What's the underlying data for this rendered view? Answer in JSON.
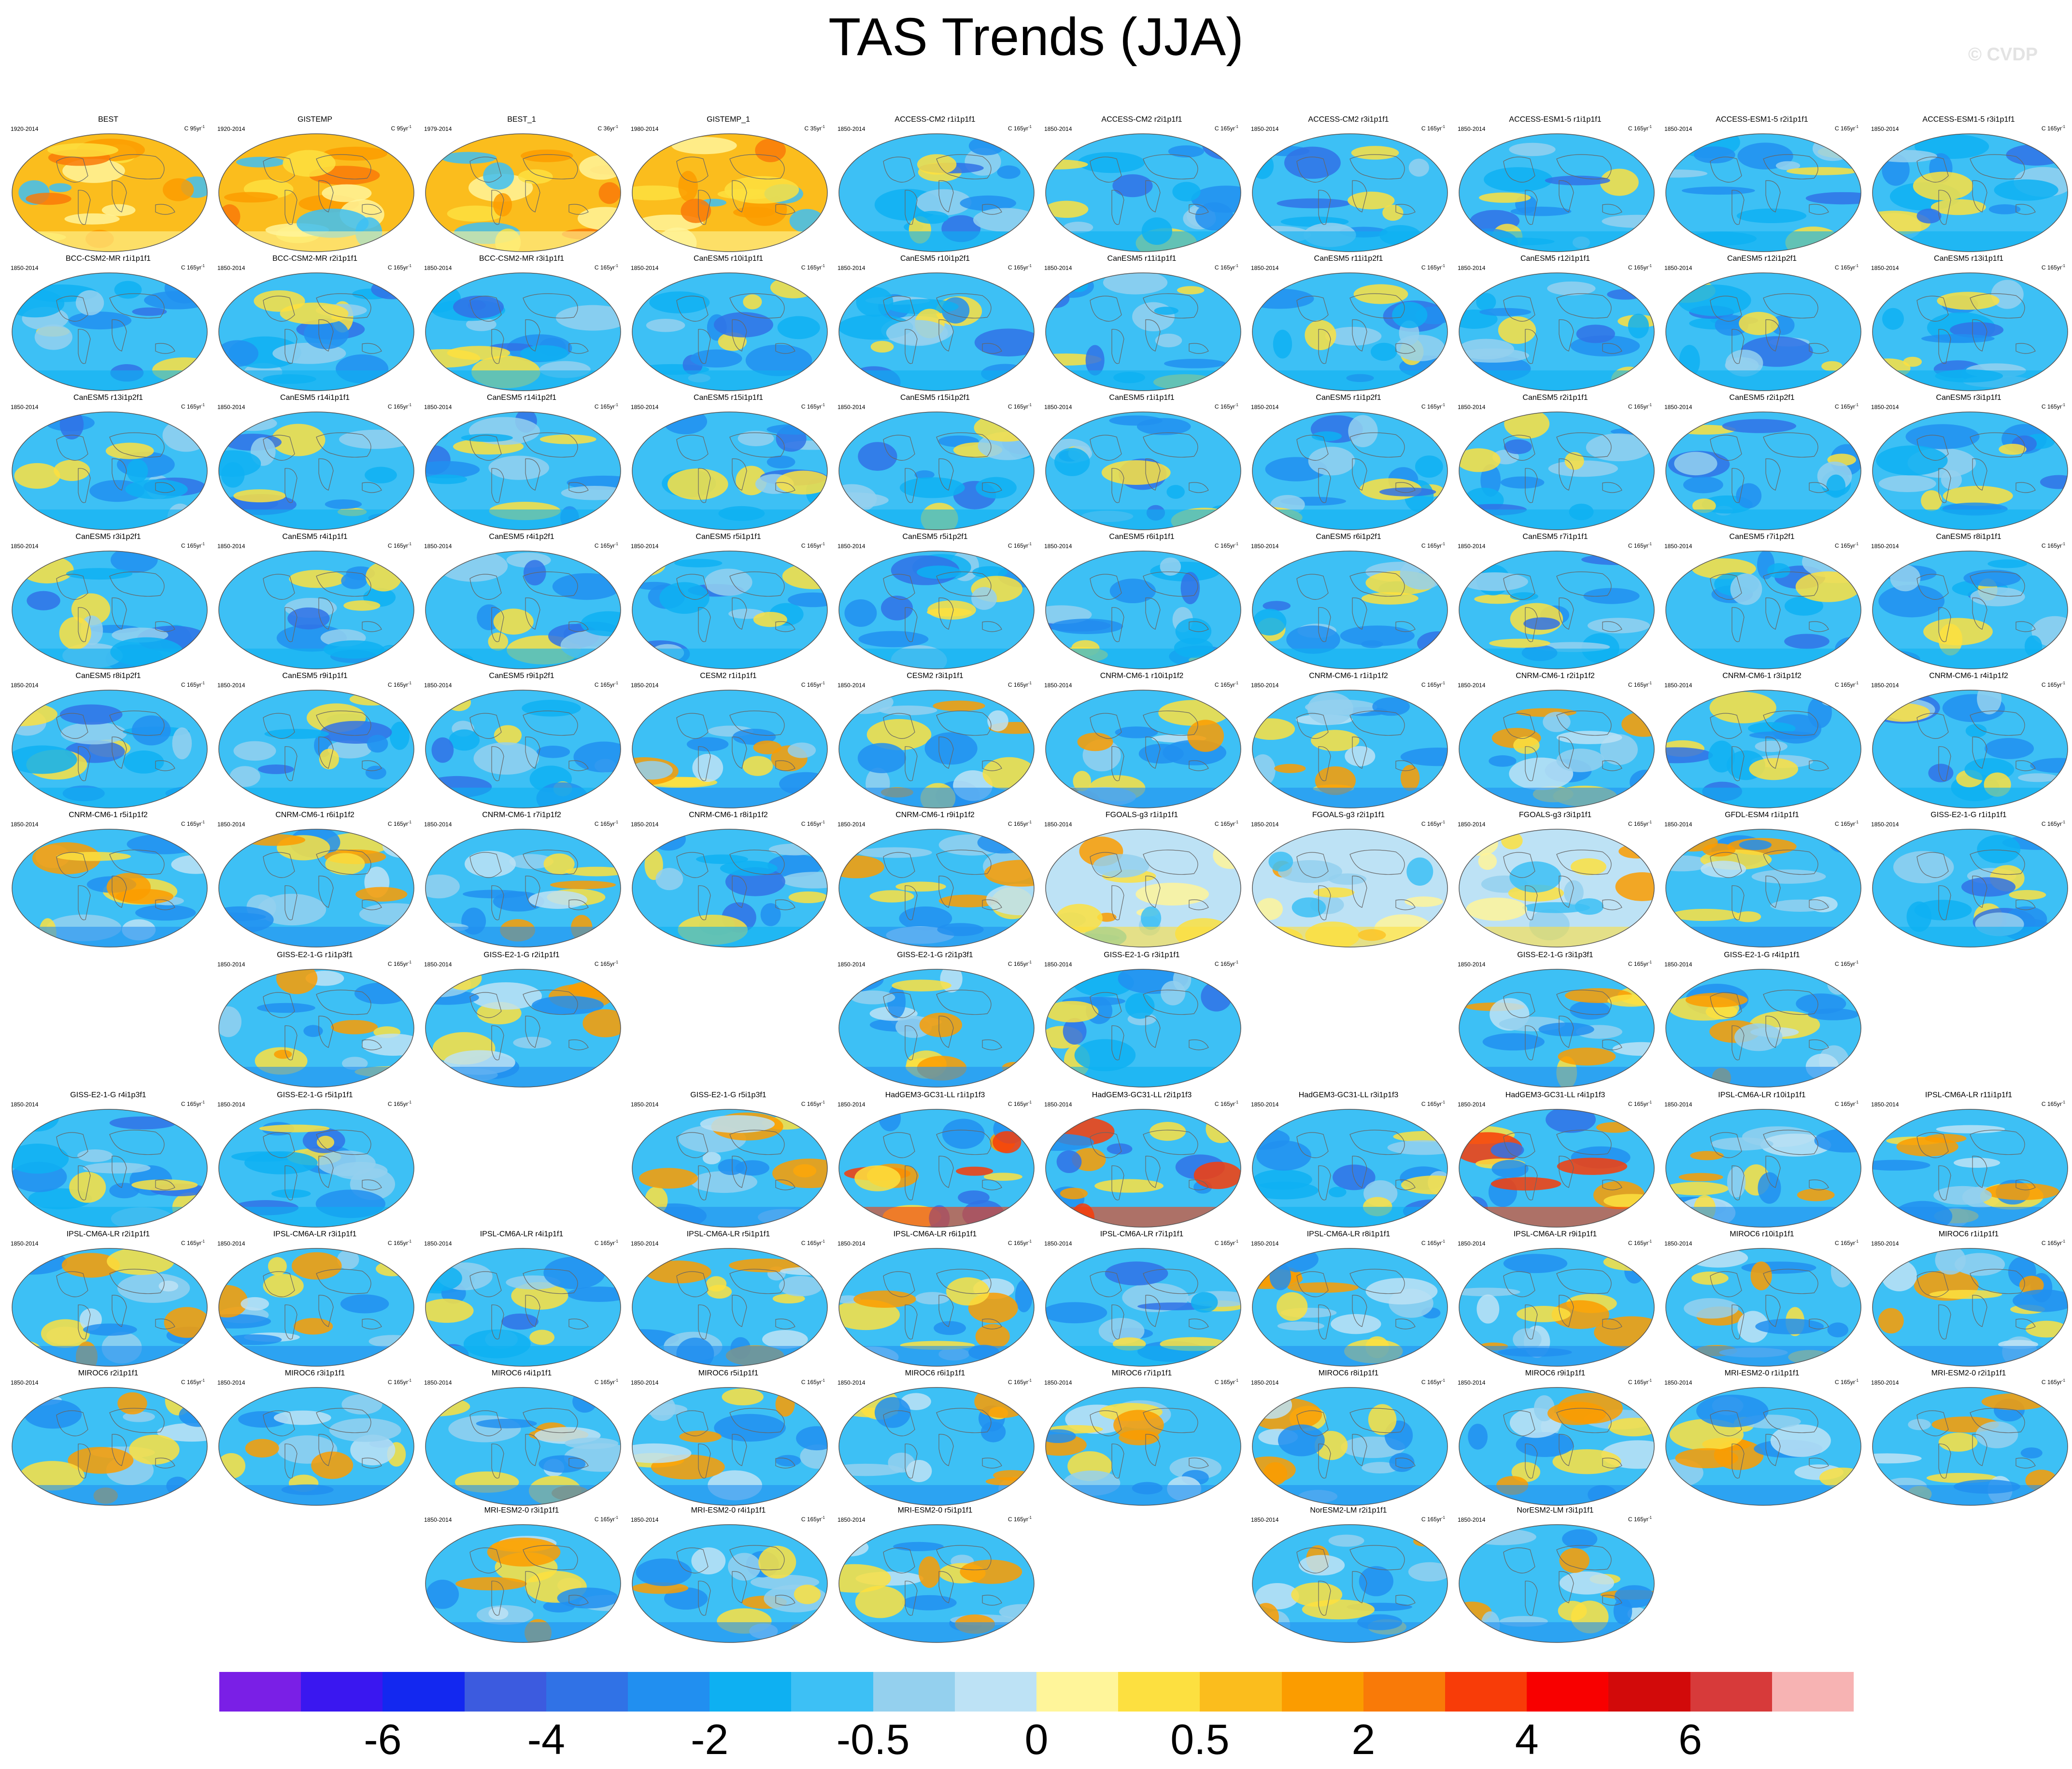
{
  "title": "TAS Trends (JJA)",
  "watermark": "© CVDP",
  "units_base": "C 165yr",
  "units_exp": "-1",
  "colorbar": {
    "colors": [
      "#7a1fe6",
      "#3a17f0",
      "#1328f0",
      "#3c5bdf",
      "#3072e6",
      "#218ff0",
      "#0eb0f2",
      "#3dc0f5",
      "#94d0ee",
      "#bde2f5",
      "#fff59a",
      "#fde040",
      "#fbbd1d",
      "#fb9c00",
      "#f97a08",
      "#f83c08",
      "#f80000",
      "#d20a0a",
      "#d73a3a",
      "#f7b3b3"
    ],
    "tick_labels": [
      "-6",
      "-4",
      "-2",
      "-0.5",
      "0",
      "0.5",
      "2",
      "4",
      "6"
    ]
  },
  "panels": [
    {
      "title": "BEST",
      "period": "1920-2014",
      "units": "C 95yr",
      "theme": "warm"
    },
    {
      "title": "GISTEMP",
      "period": "1920-2014",
      "units": "C 95yr",
      "theme": "warm"
    },
    {
      "title": "BEST_1",
      "period": "1979-2014",
      "units": "C 36yr",
      "theme": "warm"
    },
    {
      "title": "GISTEMP_1",
      "period": "1980-2014",
      "units": "C 35yr",
      "theme": "warm"
    },
    {
      "title": "ACCESS-CM2 r1i1p1f1",
      "period": "1850-2014",
      "units": "C 165yr",
      "theme": "cool"
    },
    {
      "title": "ACCESS-CM2 r2i1p1f1",
      "period": "1850-2014",
      "units": "C 165yr",
      "theme": "cool"
    },
    {
      "title": "ACCESS-CM2 r3i1p1f1",
      "period": "1850-2014",
      "units": "C 165yr",
      "theme": "cool"
    },
    {
      "title": "ACCESS-ESM1-5 r1i1p1f1",
      "period": "1850-2014",
      "units": "C 165yr",
      "theme": "cool"
    },
    {
      "title": "ACCESS-ESM1-5 r2i1p1f1",
      "period": "1850-2014",
      "units": "C 165yr",
      "theme": "cool"
    },
    {
      "title": "ACCESS-ESM1-5 r3i1p1f1",
      "period": "1850-2014",
      "units": "C 165yr",
      "theme": "cool"
    },
    {
      "title": "BCC-CSM2-MR r1i1p1f1",
      "period": "1850-2014",
      "units": "C 165yr",
      "theme": "cool"
    },
    {
      "title": "BCC-CSM2-MR r2i1p1f1",
      "period": "1850-2014",
      "units": "C 165yr",
      "theme": "cool"
    },
    {
      "title": "BCC-CSM2-MR r3i1p1f1",
      "period": "1850-2014",
      "units": "C 165yr",
      "theme": "cool"
    },
    {
      "title": "CanESM5 r10i1p1f1",
      "period": "1850-2014",
      "units": "C 165yr",
      "theme": "cool"
    },
    {
      "title": "CanESM5 r10i1p2f1",
      "period": "1850-2014",
      "units": "C 165yr",
      "theme": "cool"
    },
    {
      "title": "CanESM5 r11i1p1f1",
      "period": "1850-2014",
      "units": "C 165yr",
      "theme": "cool"
    },
    {
      "title": "CanESM5 r11i1p2f1",
      "period": "1850-2014",
      "units": "C 165yr",
      "theme": "cool"
    },
    {
      "title": "CanESM5 r12i1p1f1",
      "period": "1850-2014",
      "units": "C 165yr",
      "theme": "cool"
    },
    {
      "title": "CanESM5 r12i1p2f1",
      "period": "1850-2014",
      "units": "C 165yr",
      "theme": "cool"
    },
    {
      "title": "CanESM5 r13i1p1f1",
      "period": "1850-2014",
      "units": "C 165yr",
      "theme": "cool"
    },
    {
      "title": "CanESM5 r13i1p2f1",
      "period": "1850-2014",
      "units": "C 165yr",
      "theme": "cool"
    },
    {
      "title": "CanESM5 r14i1p1f1",
      "period": "1850-2014",
      "units": "C 165yr",
      "theme": "cool"
    },
    {
      "title": "CanESM5 r14i1p2f1",
      "period": "1850-2014",
      "units": "C 165yr",
      "theme": "cool"
    },
    {
      "title": "CanESM5 r15i1p1f1",
      "period": "1850-2014",
      "units": "C 165yr",
      "theme": "cool"
    },
    {
      "title": "CanESM5 r15i1p2f1",
      "period": "1850-2014",
      "units": "C 165yr",
      "theme": "cool"
    },
    {
      "title": "CanESM5 r1i1p1f1",
      "period": "1850-2014",
      "units": "C 165yr",
      "theme": "cool"
    },
    {
      "title": "CanESM5 r1i1p2f1",
      "period": "1850-2014",
      "units": "C 165yr",
      "theme": "cool"
    },
    {
      "title": "CanESM5 r2i1p1f1",
      "period": "1850-2014",
      "units": "C 165yr",
      "theme": "cool"
    },
    {
      "title": "CanESM5 r2i1p2f1",
      "period": "1850-2014",
      "units": "C 165yr",
      "theme": "cool"
    },
    {
      "title": "CanESM5 r3i1p1f1",
      "period": "1850-2014",
      "units": "C 165yr",
      "theme": "cool"
    },
    {
      "title": "CanESM5 r3i1p2f1",
      "period": "1850-2014",
      "units": "C 165yr",
      "theme": "cool"
    },
    {
      "title": "CanESM5 r4i1p1f1",
      "period": "1850-2014",
      "units": "C 165yr",
      "theme": "cool"
    },
    {
      "title": "CanESM5 r4i1p2f1",
      "period": "1850-2014",
      "units": "C 165yr",
      "theme": "cool"
    },
    {
      "title": "CanESM5 r5i1p1f1",
      "period": "1850-2014",
      "units": "C 165yr",
      "theme": "cool"
    },
    {
      "title": "CanESM5 r5i1p2f1",
      "period": "1850-2014",
      "units": "C 165yr",
      "theme": "cool"
    },
    {
      "title": "CanESM5 r6i1p1f1",
      "period": "1850-2014",
      "units": "C 165yr",
      "theme": "cool"
    },
    {
      "title": "CanESM5 r6i1p2f1",
      "period": "1850-2014",
      "units": "C 165yr",
      "theme": "cool"
    },
    {
      "title": "CanESM5 r7i1p1f1",
      "period": "1850-2014",
      "units": "C 165yr",
      "theme": "cool"
    },
    {
      "title": "CanESM5 r7i1p2f1",
      "period": "1850-2014",
      "units": "C 165yr",
      "theme": "cool"
    },
    {
      "title": "CanESM5 r8i1p1f1",
      "period": "1850-2014",
      "units": "C 165yr",
      "theme": "cool"
    },
    {
      "title": "CanESM5 r8i1p2f1",
      "period": "1850-2014",
      "units": "C 165yr",
      "theme": "cool"
    },
    {
      "title": "CanESM5 r9i1p1f1",
      "period": "1850-2014",
      "units": "C 165yr",
      "theme": "cool"
    },
    {
      "title": "CanESM5 r9i1p2f1",
      "period": "1850-2014",
      "units": "C 165yr",
      "theme": "cool"
    },
    {
      "title": "CESM2 r1i1p1f1",
      "period": "1850-2014",
      "units": "C 165yr",
      "theme": "mixed"
    },
    {
      "title": "CESM2 r3i1p1f1",
      "period": "1850-2014",
      "units": "C 165yr",
      "theme": "mixed"
    },
    {
      "title": "CNRM-CM6-1 r10i1p1f2",
      "period": "1850-2014",
      "units": "C 165yr",
      "theme": "mixed"
    },
    {
      "title": "CNRM-CM6-1 r1i1p1f2",
      "period": "1850-2014",
      "units": "C 165yr",
      "theme": "mixed"
    },
    {
      "title": "CNRM-CM6-1 r2i1p1f2",
      "period": "1850-2014",
      "units": "C 165yr",
      "theme": "mixed"
    },
    {
      "title": "CNRM-CM6-1 r3i1p1f2",
      "period": "1850-2014",
      "units": "C 165yr",
      "theme": "cool"
    },
    {
      "title": "CNRM-CM6-1 r4i1p1f2",
      "period": "1850-2014",
      "units": "C 165yr",
      "theme": "cool"
    },
    {
      "title": "CNRM-CM6-1 r5i1p1f2",
      "period": "1850-2014",
      "units": "C 165yr",
      "theme": "mixed"
    },
    {
      "title": "CNRM-CM6-1 r6i1p1f2",
      "period": "1850-2014",
      "units": "C 165yr",
      "theme": "mixed"
    },
    {
      "title": "CNRM-CM6-1 r7i1p1f2",
      "period": "1850-2014",
      "units": "C 165yr",
      "theme": "mixed"
    },
    {
      "title": "CNRM-CM6-1 r8i1p1f2",
      "period": "1850-2014",
      "units": "C 165yr",
      "theme": "cool"
    },
    {
      "title": "CNRM-CM6-1 r9i1p1f2",
      "period": "1850-2014",
      "units": "C 165yr",
      "theme": "mixed"
    },
    {
      "title": "FGOALS-g3 r1i1p1f1",
      "period": "1850-2014",
      "units": "C 165yr",
      "theme": "pale"
    },
    {
      "title": "FGOALS-g3 r2i1p1f1",
      "period": "1850-2014",
      "units": "C 165yr",
      "theme": "pale"
    },
    {
      "title": "FGOALS-g3 r3i1p1f1",
      "period": "1850-2014",
      "units": "C 165yr",
      "theme": "pale"
    },
    {
      "title": "GFDL-ESM4 r1i1p1f1",
      "period": "1850-2014",
      "units": "C 165yr",
      "theme": "mixed"
    },
    {
      "title": "GISS-E2-1-G r1i1p1f1",
      "period": "1850-2014",
      "units": "C 165yr",
      "theme": "cool"
    },
    {
      "title": "GISS-E2-1-G r1i1p3f1",
      "period": "1850-2014",
      "units": "C 165yr",
      "theme": "mixed"
    },
    {
      "title": "GISS-E2-1-G r2i1p1f1",
      "period": "1850-2014",
      "units": "C 165yr",
      "theme": "mixed"
    },
    {
      "title": "GISS-E2-1-G r2i1p3f1",
      "period": "1850-2014",
      "units": "C 165yr",
      "theme": "mixed"
    },
    {
      "title": "GISS-E2-1-G r3i1p1f1",
      "period": "1850-2014",
      "units": "C 165yr",
      "theme": "cool"
    },
    {
      "title": "GISS-E2-1-G r3i1p3f1",
      "period": "1850-2014",
      "units": "C 165yr",
      "theme": "mixed"
    },
    {
      "title": "GISS-E2-1-G r4i1p1f1",
      "period": "1850-2014",
      "units": "C 165yr",
      "theme": "mixed"
    },
    {
      "title": "GISS-E2-1-G r4i1p3f1",
      "period": "1850-2014",
      "units": "C 165yr",
      "theme": "cool"
    },
    {
      "title": "GISS-E2-1-G r5i1p1f1",
      "period": "1850-2014",
      "units": "C 165yr",
      "theme": "cool"
    },
    {
      "title": "GISS-E2-1-G r5i1p3f1",
      "period": "1850-2014",
      "units": "C 165yr",
      "theme": "mixed"
    },
    {
      "title": "HadGEM3-GC31-LL r1i1p1f3",
      "period": "1850-2014",
      "units": "C 165yr",
      "theme": "hot"
    },
    {
      "title": "HadGEM3-GC31-LL r2i1p1f3",
      "period": "1850-2014",
      "units": "C 165yr",
      "theme": "hot"
    },
    {
      "title": "HadGEM3-GC31-LL r3i1p1f3",
      "period": "1850-2014",
      "units": "C 165yr",
      "theme": "cool"
    },
    {
      "title": "HadGEM3-GC31-LL r4i1p1f3",
      "period": "1850-2014",
      "units": "C 165yr",
      "theme": "hot"
    },
    {
      "title": "IPSL-CM6A-LR r10i1p1f1",
      "period": "1850-2014",
      "units": "C 165yr",
      "theme": "mixed"
    },
    {
      "title": "IPSL-CM6A-LR r11i1p1f1",
      "period": "1850-2014",
      "units": "C 165yr",
      "theme": "mixed"
    },
    {
      "title": "IPSL-CM6A-LR r2i1p1f1",
      "period": "1850-2014",
      "units": "C 165yr",
      "theme": "mixed"
    },
    {
      "title": "IPSL-CM6A-LR r3i1p1f1",
      "period": "1850-2014",
      "units": "C 165yr",
      "theme": "mixed"
    },
    {
      "title": "IPSL-CM6A-LR r4i1p1f1",
      "period": "1850-2014",
      "units": "C 165yr",
      "theme": "cool"
    },
    {
      "title": "IPSL-CM6A-LR r5i1p1f1",
      "period": "1850-2014",
      "units": "C 165yr",
      "theme": "mixed"
    },
    {
      "title": "IPSL-CM6A-LR r6i1p1f1",
      "period": "1850-2014",
      "units": "C 165yr",
      "theme": "mixed"
    },
    {
      "title": "IPSL-CM6A-LR r7i1p1f1",
      "period": "1850-2014",
      "units": "C 165yr",
      "theme": "cool"
    },
    {
      "title": "IPSL-CM6A-LR r8i1p1f1",
      "period": "1850-2014",
      "units": "C 165yr",
      "theme": "mixed"
    },
    {
      "title": "IPSL-CM6A-LR r9i1p1f1",
      "period": "1850-2014",
      "units": "C 165yr",
      "theme": "mixed"
    },
    {
      "title": "MIROC6 r10i1p1f1",
      "period": "1850-2014",
      "units": "C 165yr",
      "theme": "mixed"
    },
    {
      "title": "MIROC6 r1i1p1f1",
      "period": "1850-2014",
      "units": "C 165yr",
      "theme": "mixed"
    },
    {
      "title": "MIROC6 r2i1p1f1",
      "period": "1850-2014",
      "units": "C 165yr",
      "theme": "mixed"
    },
    {
      "title": "MIROC6 r3i1p1f1",
      "period": "1850-2014",
      "units": "C 165yr",
      "theme": "mixed"
    },
    {
      "title": "MIROC6 r4i1p1f1",
      "period": "1850-2014",
      "units": "C 165yr",
      "theme": "mixed"
    },
    {
      "title": "MIROC6 r5i1p1f1",
      "period": "1850-2014",
      "units": "C 165yr",
      "theme": "mixed"
    },
    {
      "title": "MIROC6 r6i1p1f1",
      "period": "1850-2014",
      "units": "C 165yr",
      "theme": "mixed"
    },
    {
      "title": "MIROC6 r7i1p1f1",
      "period": "1850-2014",
      "units": "C 165yr",
      "theme": "mixed"
    },
    {
      "title": "MIROC6 r8i1p1f1",
      "period": "1850-2014",
      "units": "C 165yr",
      "theme": "mixed"
    },
    {
      "title": "MIROC6 r9i1p1f1",
      "period": "1850-2014",
      "units": "C 165yr",
      "theme": "mixed"
    },
    {
      "title": "MRI-ESM2-0 r1i1p1f1",
      "period": "1850-2014",
      "units": "C 165yr",
      "theme": "mixed"
    },
    {
      "title": "MRI-ESM2-0 r2i1p1f1",
      "period": "1850-2014",
      "units": "C 165yr",
      "theme": "mixed"
    },
    {
      "title": "MRI-ESM2-0 r3i1p1f1",
      "period": "1850-2014",
      "units": "C 165yr",
      "theme": "mixed"
    },
    {
      "title": "MRI-ESM2-0 r4i1p1f1",
      "period": "1850-2014",
      "units": "C 165yr",
      "theme": "mixed"
    },
    {
      "title": "MRI-ESM2-0 r5i1p1f1",
      "period": "1850-2014",
      "units": "C 165yr",
      "theme": "mixed"
    },
    {
      "title": "NorESM2-LM r2i1p1f1",
      "period": "1850-2014",
      "units": "C 165yr",
      "theme": "mixed"
    },
    {
      "title": "NorESM2-LM r3i1p1f1",
      "period": "1850-2014",
      "units": "C 165yr",
      "theme": "mixed"
    }
  ]
}
